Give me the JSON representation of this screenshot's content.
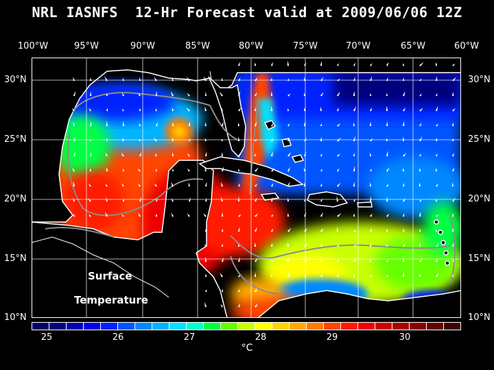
{
  "title": "NRL IASNFS  12-Hr Forecast valid at 2009/06/06 12Z",
  "longitude_labels": [
    "100°W",
    "95°W",
    "90°W",
    "85°W",
    "80°W",
    "75°W",
    "70°W",
    "65°W",
    "60°W"
  ],
  "latitude_labels": [
    "30°N",
    "25°N",
    "20°N",
    "15°N",
    "10°N"
  ],
  "map_annotation": {
    "line1": "Surface",
    "line2": "Temperature"
  },
  "colorbar": {
    "tick_labels": [
      "25",
      "26",
      "27",
      "28",
      "29",
      "30"
    ],
    "unit": "°C",
    "colors": [
      "#000066",
      "#00007d",
      "#0000b0",
      "#0000e6",
      "#0022ff",
      "#0055ff",
      "#0088ff",
      "#00b4ff",
      "#00e0ff",
      "#00ffcc",
      "#00ff44",
      "#66ff00",
      "#c8ff00",
      "#ffff00",
      "#ffd400",
      "#ffaa00",
      "#ff7b00",
      "#ff4400",
      "#ff1a00",
      "#ee0000",
      "#cc0000",
      "#aa0000",
      "#880000",
      "#660000",
      "#3d0000"
    ]
  },
  "colors": {
    "background": "#000000",
    "land": "#000000",
    "coastline": "#ffffff",
    "gridline": "#ffffff",
    "bathymetry_contour": "#8c8c8c",
    "wind_vectors": "#ffffff"
  }
}
